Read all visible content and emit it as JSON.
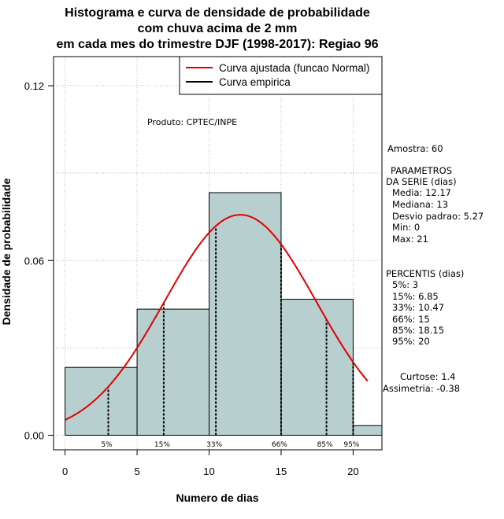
{
  "chart_data": {
    "type": "histogram",
    "title": [
      "Histograma e curva de densidade de probabilidade",
      "com chuva acima de 2 mm",
      "em cada mes do trimestre DJF (1998-2017): Regiao 96"
    ],
    "xlabel": "Numero de dias",
    "ylabel": "Densidade de probabilidade",
    "xlim": [
      -0.8,
      22
    ],
    "ylim": [
      -0.005,
      0.13
    ],
    "x_ticks": [
      0,
      5,
      10,
      15,
      20
    ],
    "y_ticks": [
      0.0,
      0.06,
      0.12
    ],
    "y_tick_labels": [
      "0.00",
      "0.06",
      "0.12"
    ],
    "bins": [
      {
        "start": 0,
        "end": 5,
        "density": 0.0233
      },
      {
        "start": 5,
        "end": 10,
        "density": 0.0433
      },
      {
        "start": 10,
        "end": 15,
        "density": 0.0833
      },
      {
        "start": 15,
        "end": 20,
        "density": 0.0467
      },
      {
        "start": 20,
        "end": 22,
        "density": 0.0033
      }
    ],
    "normal_fit": {
      "mean": 12.17,
      "sd": 5.27,
      "x_from": 0,
      "x_to": 21
    },
    "percentiles": [
      {
        "label": "5%",
        "value": 3
      },
      {
        "label": "15%",
        "value": 6.85
      },
      {
        "label": "33%",
        "value": 10.47
      },
      {
        "label": "66%",
        "value": 15
      },
      {
        "label": "85%",
        "value": 18.15
      },
      {
        "label": "95%",
        "value": 20
      }
    ],
    "legend": [
      {
        "label": "Curva ajustada (funcao Normal)",
        "color": "#e00000"
      },
      {
        "label": "Curva empirica",
        "color": "#000000"
      }
    ],
    "colors": {
      "bar_fill": "#b8cfcf",
      "curve": "#e00000",
      "grid": "#bbbbbb"
    },
    "product_note": "Produto: CPTEC/INPE",
    "side_text": [
      "Amostra: 60",
      "PARAMETROS",
      "DA SERIE (dias)",
      "Media: 12.17",
      "Mediana: 13",
      "Desvio padrao: 5.27",
      "Min: 0",
      "Max: 21",
      "PERCENTIS (dias)",
      "5%: 3",
      "15%: 6.85",
      "33%: 10.47",
      "66%: 15",
      "85%: 18.15",
      "95%: 20",
      "Curtose: 1.4",
      "Assimetria: -0.38"
    ]
  }
}
